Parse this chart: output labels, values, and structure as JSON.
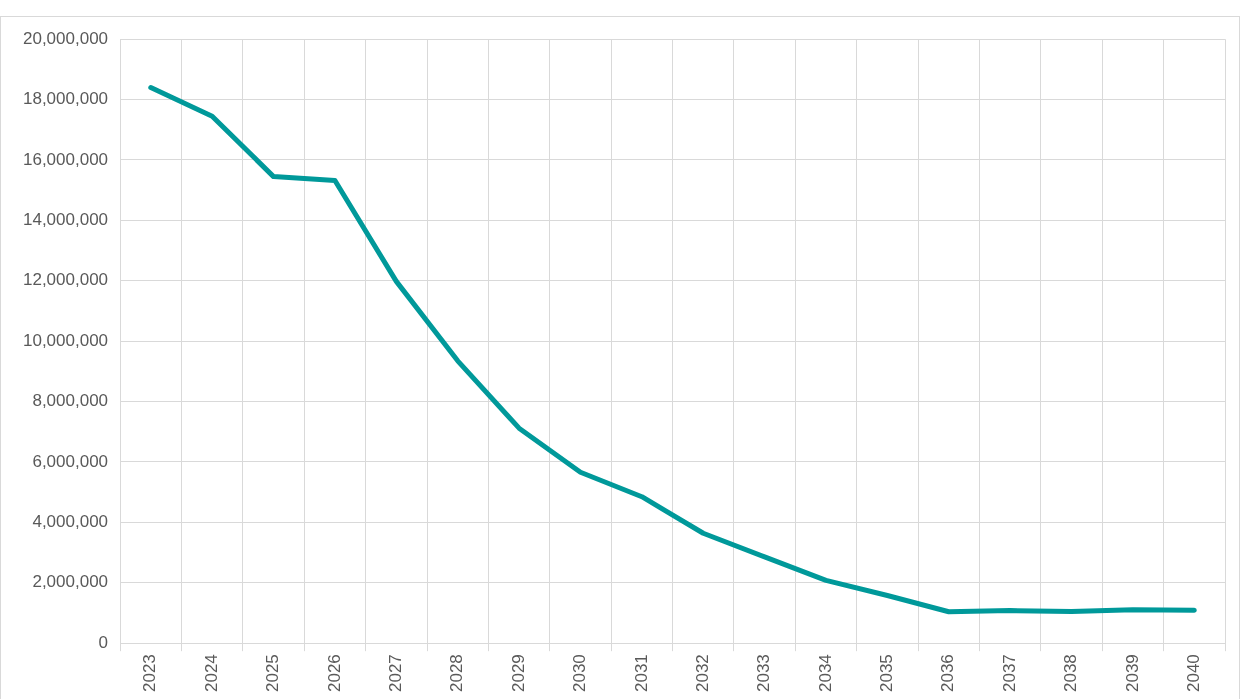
{
  "chart_data": {
    "type": "line",
    "categories": [
      "2023",
      "2024",
      "2025",
      "2026",
      "2027",
      "2028",
      "2029",
      "2030",
      "2031",
      "2032",
      "2033",
      "2034",
      "2035",
      "2036",
      "2037",
      "2038",
      "2039",
      "2040"
    ],
    "series": [
      {
        "color": "#00999a",
        "values": [
          18400000,
          17450000,
          15450000,
          15320000,
          11980000,
          9350000,
          7120000,
          5660000,
          4850000,
          3640000,
          2860000,
          2080000,
          1580000,
          1040000,
          1080000,
          1050000,
          1110000,
          1090000
        ]
      }
    ],
    "ylim": [
      0,
      20000000
    ],
    "yticks": [
      0,
      {
        "value": 2000000,
        "label": "2,000,000"
      },
      {
        "value": 4000000,
        "label": "4,000,000"
      },
      {
        "value": 6000000,
        "label": "6,000,000"
      },
      {
        "value": 8000000,
        "label": "8,000,000"
      },
      {
        "value": 10000000,
        "label": "10,000,000"
      },
      {
        "value": 12000000,
        "label": "12,000,000"
      },
      {
        "value": 14000000,
        "label": "14,000,000"
      },
      {
        "value": 16000000,
        "label": "16,000,000"
      },
      {
        "value": 18000000,
        "label": "18,000,000"
      },
      {
        "value": 20000000,
        "label": "20,000,000"
      }
    ],
    "grid": true,
    "legend": false,
    "marker": "none",
    "line_style": "solid"
  }
}
